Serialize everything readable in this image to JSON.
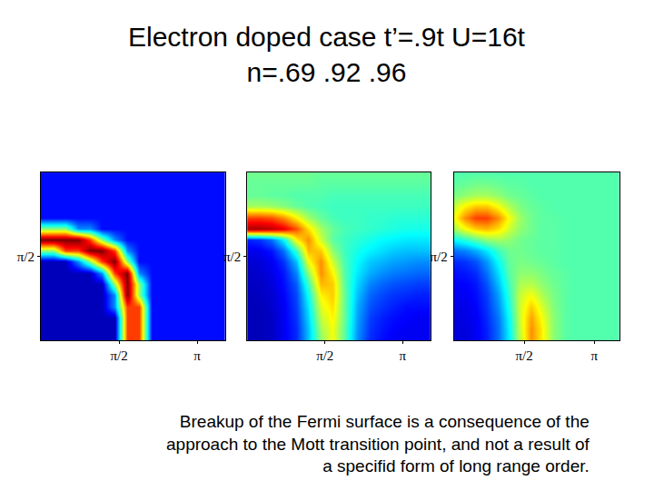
{
  "title": [
    "Electron doped case t’=.9t U=16t",
    "n=.69 .92 .96"
  ],
  "caption": [
    "Breakup of the Fermi surface is a consequence of the",
    "approach to the Mott transition point, and not a result of",
    "a specifid form of long range order."
  ],
  "chart_data": [
    {
      "type": "heatmap",
      "x": [
        0,
        0.25,
        0.49,
        0.74,
        0.99,
        1.23,
        1.48,
        1.73,
        1.97,
        2.22,
        2.47,
        2.71,
        2.96,
        3.21,
        3.45,
        3.7
      ],
      "y": [
        0,
        0.21,
        0.42,
        0.63,
        0.84,
        1.05,
        1.26,
        1.47,
        1.68,
        1.88,
        2.09,
        2.3,
        2.51,
        2.72,
        2.93,
        3.14
      ],
      "zlim": [
        0,
        1
      ],
      "xlim": [
        0,
        3.7
      ],
      "xticks": [
        {
          "value": 1.5708,
          "label": "π/2"
        },
        {
          "value": 3.1416,
          "label": "π"
        }
      ],
      "ylim": [
        0,
        3.1416
      ],
      "yticks": [
        {
          "value": 1.5708,
          "label": "π/2"
        }
      ],
      "z": [
        [
          0.05,
          0.05,
          0.05,
          0.05,
          0.05,
          0.05,
          0.05,
          0.8,
          0.8,
          0.12,
          0.12,
          0.12,
          0.12,
          0.12,
          0.12,
          0.12
        ],
        [
          0.05,
          0.05,
          0.05,
          0.05,
          0.05,
          0.05,
          0.05,
          0.8,
          0.8,
          0.12,
          0.12,
          0.12,
          0.12,
          0.12,
          0.12,
          0.12
        ],
        [
          0.05,
          0.05,
          0.05,
          0.05,
          0.05,
          0.05,
          0.05,
          0.8,
          0.8,
          0.12,
          0.12,
          0.12,
          0.12,
          0.12,
          0.12,
          0.12
        ],
        [
          0.05,
          0.05,
          0.05,
          0.05,
          0.05,
          0.05,
          0.25,
          0.8,
          0.8,
          0.12,
          0.12,
          0.12,
          0.12,
          0.12,
          0.12,
          0.12
        ],
        [
          0.05,
          0.05,
          0.05,
          0.05,
          0.05,
          0.05,
          0.25,
          1,
          0.5,
          0.12,
          0.12,
          0.12,
          0.12,
          0.12,
          0.12,
          0.12
        ],
        [
          0.05,
          0.05,
          0.05,
          0.05,
          0.05,
          0.05,
          0.5,
          1,
          0.5,
          0.12,
          0.12,
          0.12,
          0.12,
          0.12,
          0.12,
          0.12
        ],
        [
          0.05,
          0.05,
          0.05,
          0.05,
          0.05,
          0.25,
          0.8,
          1,
          0.25,
          0.12,
          0.12,
          0.12,
          0.12,
          0.12,
          0.12,
          0.12
        ],
        [
          0.05,
          0.05,
          0.05,
          0.25,
          0.5,
          0.8,
          1,
          0.5,
          0.12,
          0.12,
          0.12,
          0.12,
          0.12,
          0.12,
          0.12,
          0.12
        ],
        [
          0.5,
          0.5,
          0.8,
          0.8,
          1,
          1,
          0.8,
          0.25,
          0.12,
          0.12,
          0.12,
          0.12,
          0.12,
          0.12,
          0.12,
          0.12
        ],
        [
          1,
          1,
          1,
          1,
          0.8,
          0.5,
          0.25,
          0.12,
          0.12,
          0.12,
          0.12,
          0.12,
          0.12,
          0.12,
          0.12,
          0.12
        ],
        [
          0.5,
          0.5,
          0.5,
          0.25,
          0.25,
          0.12,
          0.12,
          0.12,
          0.12,
          0.12,
          0.12,
          0.12,
          0.12,
          0.12,
          0.12,
          0.12
        ],
        [
          0.12,
          0.12,
          0.12,
          0.12,
          0.12,
          0.12,
          0.12,
          0.12,
          0.12,
          0.12,
          0.12,
          0.12,
          0.12,
          0.12,
          0.12,
          0.12
        ],
        [
          0.12,
          0.12,
          0.12,
          0.12,
          0.12,
          0.12,
          0.12,
          0.12,
          0.12,
          0.12,
          0.12,
          0.12,
          0.12,
          0.12,
          0.12,
          0.12
        ],
        [
          0.12,
          0.12,
          0.12,
          0.12,
          0.12,
          0.12,
          0.12,
          0.12,
          0.12,
          0.12,
          0.12,
          0.12,
          0.12,
          0.12,
          0.12,
          0.12
        ],
        [
          0.12,
          0.12,
          0.12,
          0.12,
          0.12,
          0.12,
          0.12,
          0.12,
          0.12,
          0.12,
          0.12,
          0.12,
          0.12,
          0.12,
          0.12,
          0.12
        ],
        [
          0.12,
          0.12,
          0.12,
          0.12,
          0.12,
          0.12,
          0.12,
          0.12,
          0.12,
          0.12,
          0.12,
          0.12,
          0.12,
          0.12,
          0.12,
          0.12
        ]
      ]
    },
    {
      "type": "heatmap",
      "x": [
        0,
        0.25,
        0.49,
        0.74,
        0.99,
        1.23,
        1.48,
        1.73,
        1.97,
        2.22,
        2.47,
        2.71,
        2.96,
        3.21,
        3.45,
        3.7
      ],
      "y": [
        0,
        0.21,
        0.42,
        0.63,
        0.84,
        1.05,
        1.26,
        1.47,
        1.68,
        1.88,
        2.09,
        2.3,
        2.51,
        2.72,
        2.93,
        3.14
      ],
      "zlim": [
        0,
        1
      ],
      "xlim": [
        0,
        3.7
      ],
      "xticks": [
        {
          "value": 1.5708,
          "label": "π/2"
        },
        {
          "value": 3.1416,
          "label": "π"
        }
      ],
      "ylim": [
        0,
        3.1416
      ],
      "yticks": [
        {
          "value": 1.5708,
          "label": "π/2"
        }
      ],
      "z": [
        [
          0.05,
          0.05,
          0.06,
          0.1,
          0.15,
          0.3,
          0.5,
          0.6,
          0.45,
          0.25,
          0.15,
          0.12,
          0.1,
          0.1,
          0.1,
          0.1
        ],
        [
          0.05,
          0.05,
          0.06,
          0.1,
          0.15,
          0.3,
          0.52,
          0.6,
          0.45,
          0.26,
          0.16,
          0.13,
          0.11,
          0.1,
          0.1,
          0.1
        ],
        [
          0.05,
          0.05,
          0.06,
          0.1,
          0.16,
          0.32,
          0.55,
          0.62,
          0.46,
          0.27,
          0.17,
          0.14,
          0.12,
          0.11,
          0.1,
          0.1
        ],
        [
          0.05,
          0.05,
          0.07,
          0.1,
          0.17,
          0.34,
          0.58,
          0.64,
          0.46,
          0.28,
          0.19,
          0.16,
          0.14,
          0.12,
          0.12,
          0.12
        ],
        [
          0.05,
          0.06,
          0.07,
          0.11,
          0.18,
          0.37,
          0.62,
          0.66,
          0.46,
          0.3,
          0.21,
          0.18,
          0.16,
          0.15,
          0.14,
          0.14
        ],
        [
          0.06,
          0.06,
          0.08,
          0.12,
          0.2,
          0.42,
          0.68,
          0.66,
          0.45,
          0.32,
          0.24,
          0.21,
          0.19,
          0.18,
          0.17,
          0.17
        ],
        [
          0.06,
          0.07,
          0.09,
          0.13,
          0.24,
          0.5,
          0.72,
          0.62,
          0.44,
          0.34,
          0.28,
          0.25,
          0.23,
          0.22,
          0.21,
          0.21
        ],
        [
          0.07,
          0.08,
          0.1,
          0.16,
          0.3,
          0.6,
          0.72,
          0.56,
          0.43,
          0.36,
          0.31,
          0.29,
          0.27,
          0.26,
          0.25,
          0.25
        ],
        [
          0.09,
          0.1,
          0.13,
          0.22,
          0.42,
          0.68,
          0.66,
          0.5,
          0.42,
          0.38,
          0.35,
          0.33,
          0.31,
          0.3,
          0.3,
          0.3
        ],
        [
          0.14,
          0.16,
          0.22,
          0.36,
          0.62,
          0.72,
          0.56,
          0.45,
          0.42,
          0.4,
          0.38,
          0.36,
          0.35,
          0.34,
          0.34,
          0.34
        ],
        [
          0.95,
          0.95,
          0.93,
          0.88,
          0.78,
          0.64,
          0.52,
          0.46,
          0.43,
          0.42,
          0.41,
          0.4,
          0.39,
          0.38,
          0.38,
          0.38
        ],
        [
          0.8,
          0.8,
          0.78,
          0.72,
          0.62,
          0.52,
          0.46,
          0.43,
          0.42,
          0.42,
          0.41,
          0.41,
          0.4,
          0.4,
          0.4,
          0.4
        ],
        [
          0.52,
          0.52,
          0.51,
          0.49,
          0.46,
          0.44,
          0.43,
          0.42,
          0.42,
          0.42,
          0.42,
          0.42,
          0.42,
          0.42,
          0.42,
          0.42
        ],
        [
          0.46,
          0.46,
          0.45,
          0.45,
          0.44,
          0.44,
          0.44,
          0.43,
          0.43,
          0.43,
          0.43,
          0.43,
          0.43,
          0.43,
          0.43,
          0.43
        ],
        [
          0.46,
          0.46,
          0.46,
          0.46,
          0.46,
          0.46,
          0.45,
          0.45,
          0.45,
          0.45,
          0.45,
          0.45,
          0.45,
          0.45,
          0.45,
          0.45
        ],
        [
          0.47,
          0.47,
          0.47,
          0.47,
          0.47,
          0.47,
          0.46,
          0.46,
          0.46,
          0.46,
          0.46,
          0.46,
          0.46,
          0.46,
          0.46,
          0.46
        ]
      ]
    },
    {
      "type": "heatmap",
      "x": [
        0,
        0.25,
        0.49,
        0.74,
        0.99,
        1.23,
        1.48,
        1.73,
        1.97,
        2.22,
        2.47,
        2.71,
        2.96,
        3.21,
        3.45,
        3.7
      ],
      "y": [
        0,
        0.21,
        0.42,
        0.63,
        0.84,
        1.05,
        1.26,
        1.47,
        1.68,
        1.88,
        2.09,
        2.3,
        2.51,
        2.72,
        2.93,
        3.14
      ],
      "zlim": [
        0,
        1
      ],
      "xlim": [
        0,
        3.7
      ],
      "xticks": [
        {
          "value": 1.5708,
          "label": "π/2"
        },
        {
          "value": 3.1416,
          "label": "π"
        }
      ],
      "ylim": [
        0,
        3.1416
      ],
      "yticks": [
        {
          "value": 1.5708,
          "label": "π/2"
        }
      ],
      "z": [
        [
          0.08,
          0.08,
          0.1,
          0.14,
          0.22,
          0.35,
          0.55,
          0.72,
          0.62,
          0.5,
          0.45,
          0.44,
          0.44,
          0.44,
          0.44,
          0.44
        ],
        [
          0.08,
          0.08,
          0.1,
          0.14,
          0.22,
          0.36,
          0.56,
          0.72,
          0.62,
          0.5,
          0.45,
          0.44,
          0.44,
          0.44,
          0.44,
          0.44
        ],
        [
          0.08,
          0.09,
          0.1,
          0.15,
          0.23,
          0.37,
          0.57,
          0.7,
          0.6,
          0.5,
          0.45,
          0.44,
          0.44,
          0.44,
          0.44,
          0.44
        ],
        [
          0.09,
          0.09,
          0.11,
          0.16,
          0.25,
          0.39,
          0.57,
          0.66,
          0.57,
          0.49,
          0.45,
          0.44,
          0.44,
          0.44,
          0.44,
          0.44
        ],
        [
          0.1,
          0.1,
          0.12,
          0.17,
          0.27,
          0.41,
          0.56,
          0.6,
          0.53,
          0.48,
          0.45,
          0.44,
          0.44,
          0.44,
          0.44,
          0.44
        ],
        [
          0.11,
          0.11,
          0.13,
          0.19,
          0.3,
          0.43,
          0.53,
          0.54,
          0.5,
          0.47,
          0.45,
          0.44,
          0.44,
          0.44,
          0.44,
          0.44
        ],
        [
          0.12,
          0.13,
          0.15,
          0.22,
          0.33,
          0.45,
          0.5,
          0.5,
          0.48,
          0.46,
          0.45,
          0.44,
          0.44,
          0.44,
          0.44,
          0.44
        ],
        [
          0.15,
          0.16,
          0.19,
          0.26,
          0.37,
          0.46,
          0.48,
          0.47,
          0.46,
          0.45,
          0.44,
          0.44,
          0.44,
          0.44,
          0.44,
          0.44
        ],
        [
          0.22,
          0.24,
          0.28,
          0.34,
          0.42,
          0.47,
          0.47,
          0.46,
          0.45,
          0.45,
          0.44,
          0.44,
          0.44,
          0.44,
          0.44,
          0.44
        ],
        [
          0.36,
          0.4,
          0.45,
          0.5,
          0.52,
          0.5,
          0.47,
          0.46,
          0.45,
          0.45,
          0.44,
          0.44,
          0.44,
          0.44,
          0.44,
          0.44
        ],
        [
          0.52,
          0.6,
          0.66,
          0.68,
          0.64,
          0.56,
          0.5,
          0.47,
          0.45,
          0.45,
          0.44,
          0.44,
          0.44,
          0.44,
          0.44,
          0.44
        ],
        [
          0.6,
          0.72,
          0.8,
          0.8,
          0.72,
          0.6,
          0.51,
          0.47,
          0.45,
          0.45,
          0.44,
          0.44,
          0.44,
          0.44,
          0.44,
          0.44
        ],
        [
          0.55,
          0.62,
          0.66,
          0.66,
          0.6,
          0.53,
          0.48,
          0.46,
          0.45,
          0.44,
          0.44,
          0.44,
          0.44,
          0.44,
          0.44,
          0.44
        ],
        [
          0.48,
          0.5,
          0.52,
          0.52,
          0.5,
          0.47,
          0.46,
          0.45,
          0.44,
          0.44,
          0.44,
          0.44,
          0.44,
          0.44,
          0.44,
          0.44
        ],
        [
          0.45,
          0.46,
          0.47,
          0.47,
          0.46,
          0.45,
          0.45,
          0.44,
          0.44,
          0.44,
          0.44,
          0.44,
          0.44,
          0.44,
          0.44,
          0.44
        ],
        [
          0.44,
          0.44,
          0.44,
          0.44,
          0.44,
          0.44,
          0.44,
          0.44,
          0.44,
          0.44,
          0.44,
          0.44,
          0.44,
          0.44,
          0.44,
          0.44
        ]
      ]
    }
  ]
}
